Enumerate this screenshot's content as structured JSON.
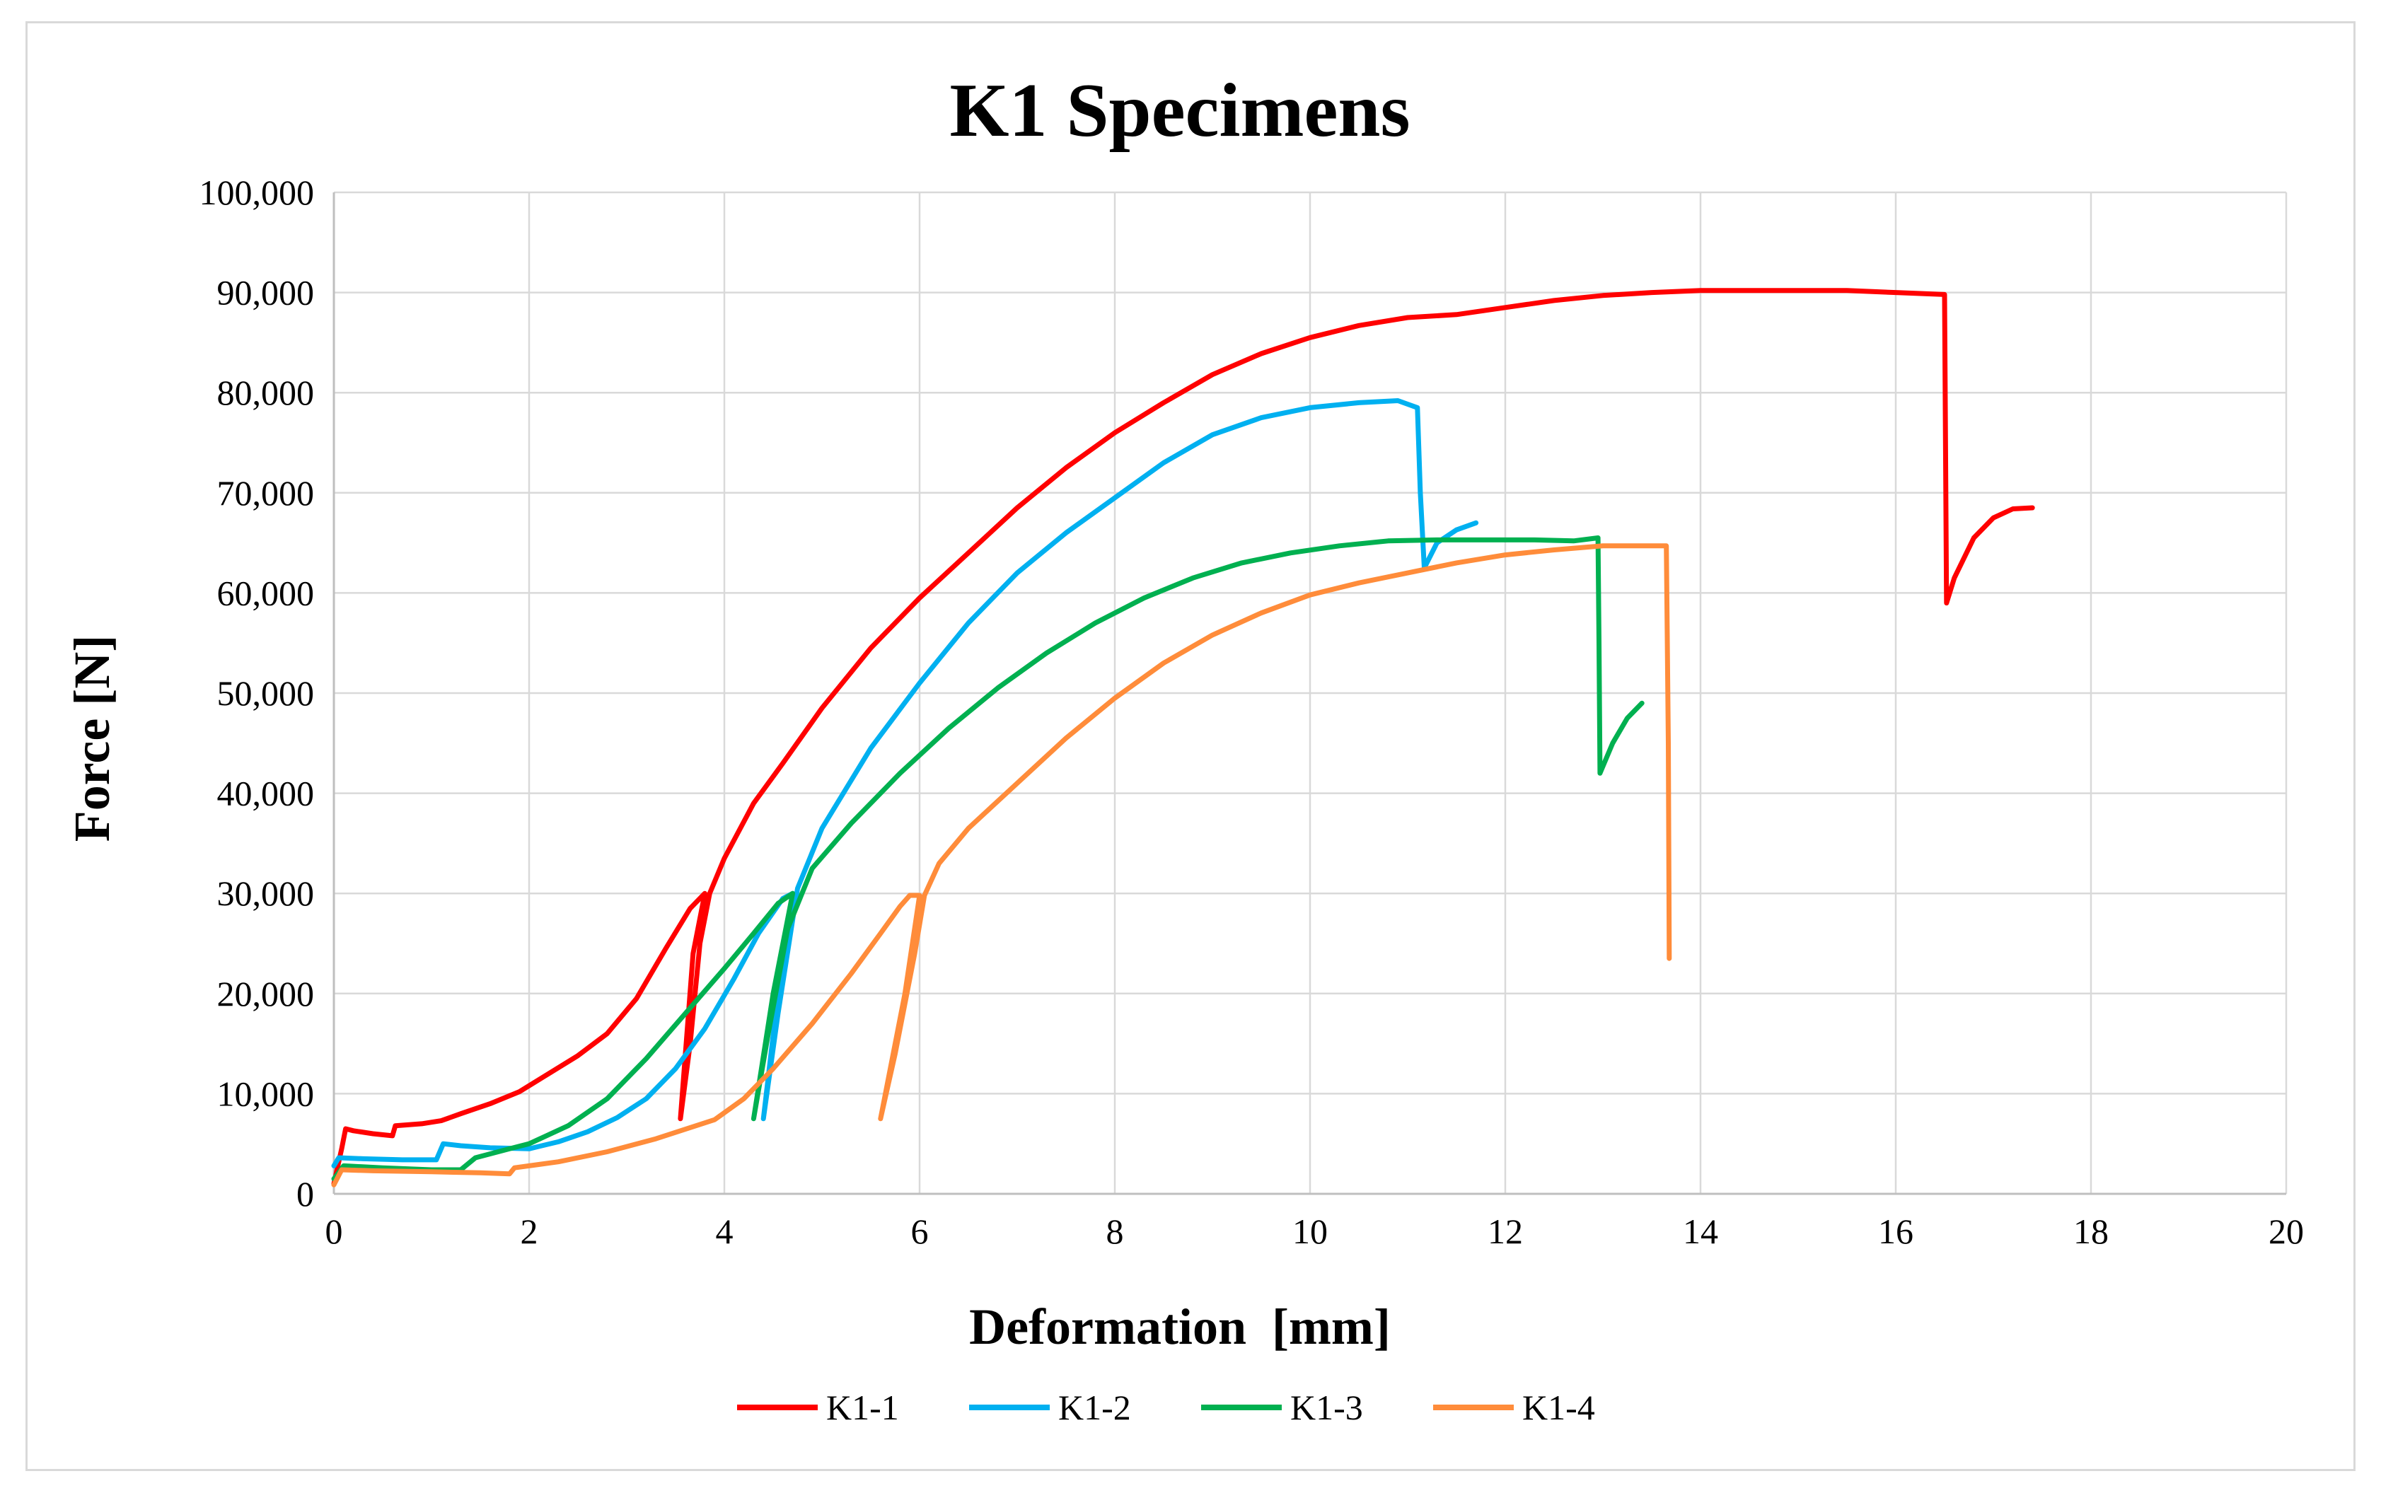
{
  "chart_data": {
    "type": "line",
    "title": "K1 Specimens",
    "xlabel": "Deformation  [mm]",
    "ylabel": "Force [N]",
    "xlim": [
      0,
      20
    ],
    "ylim": [
      0,
      100000
    ],
    "xticks": [
      0,
      2,
      4,
      6,
      8,
      10,
      12,
      14,
      16,
      18,
      20
    ],
    "xtick_labels": [
      "0",
      "2",
      "4",
      "6",
      "8",
      "10",
      "12",
      "14",
      "16",
      "18",
      "20"
    ],
    "yticks": [
      0,
      10000,
      20000,
      30000,
      40000,
      50000,
      60000,
      70000,
      80000,
      90000,
      100000
    ],
    "ytick_labels": [
      "0",
      "10,000",
      "20,000",
      "30,000",
      "40,000",
      "50,000",
      "60,000",
      "70,000",
      "80,000",
      "90,000",
      "100,000"
    ],
    "grid": true,
    "legend_position": "bottom",
    "series": [
      {
        "name": "K1-1",
        "color": "#ff0000",
        "points": [
          [
            0.0,
            1000
          ],
          [
            0.08,
            4500
          ],
          [
            0.12,
            6500
          ],
          [
            0.2,
            6300
          ],
          [
            0.4,
            6000
          ],
          [
            0.6,
            5800
          ],
          [
            0.63,
            6800
          ],
          [
            0.9,
            7000
          ],
          [
            1.1,
            7300
          ],
          [
            1.3,
            8000
          ],
          [
            1.6,
            9000
          ],
          [
            1.9,
            10200
          ],
          [
            2.2,
            12000
          ],
          [
            2.5,
            13800
          ],
          [
            2.8,
            16000
          ],
          [
            3.1,
            19500
          ],
          [
            3.4,
            24500
          ],
          [
            3.65,
            28500
          ],
          [
            3.8,
            30000
          ],
          [
            3.68,
            24000
          ],
          [
            3.55,
            7500
          ],
          [
            3.65,
            15000
          ],
          [
            3.75,
            25000
          ],
          [
            3.85,
            30000
          ],
          [
            4.0,
            33500
          ],
          [
            4.3,
            39000
          ],
          [
            4.6,
            43000
          ],
          [
            5.0,
            48500
          ],
          [
            5.5,
            54500
          ],
          [
            6.0,
            59500
          ],
          [
            6.5,
            64000
          ],
          [
            7.0,
            68500
          ],
          [
            7.5,
            72500
          ],
          [
            8.0,
            76000
          ],
          [
            8.5,
            79000
          ],
          [
            9.0,
            81800
          ],
          [
            9.5,
            83900
          ],
          [
            10.0,
            85500
          ],
          [
            10.5,
            86700
          ],
          [
            11.0,
            87500
          ],
          [
            11.5,
            87800
          ],
          [
            12.0,
            88500
          ],
          [
            12.5,
            89200
          ],
          [
            13.0,
            89700
          ],
          [
            13.5,
            90000
          ],
          [
            14.0,
            90200
          ],
          [
            14.5,
            90200
          ],
          [
            15.0,
            90200
          ],
          [
            15.5,
            90200
          ],
          [
            16.0,
            90000
          ],
          [
            16.5,
            89800
          ],
          [
            16.52,
            59000
          ],
          [
            16.6,
            61500
          ],
          [
            16.8,
            65500
          ],
          [
            17.0,
            67500
          ],
          [
            17.2,
            68400
          ],
          [
            17.4,
            68500
          ]
        ]
      },
      {
        "name": "K1-2",
        "color": "#00b0f0",
        "points": [
          [
            0.0,
            2800
          ],
          [
            0.05,
            3600
          ],
          [
            0.3,
            3500
          ],
          [
            0.7,
            3400
          ],
          [
            1.05,
            3400
          ],
          [
            1.12,
            5000
          ],
          [
            1.3,
            4800
          ],
          [
            1.6,
            4600
          ],
          [
            2.0,
            4500
          ],
          [
            2.3,
            5200
          ],
          [
            2.6,
            6200
          ],
          [
            2.9,
            7600
          ],
          [
            3.2,
            9500
          ],
          [
            3.5,
            12500
          ],
          [
            3.8,
            16500
          ],
          [
            4.1,
            21500
          ],
          [
            4.35,
            26000
          ],
          [
            4.6,
            29500
          ],
          [
            4.7,
            30000
          ],
          [
            4.55,
            20000
          ],
          [
            4.4,
            7500
          ],
          [
            4.55,
            18000
          ],
          [
            4.75,
            30500
          ],
          [
            5.0,
            36500
          ],
          [
            5.5,
            44500
          ],
          [
            6.0,
            51000
          ],
          [
            6.5,
            57000
          ],
          [
            7.0,
            62000
          ],
          [
            7.5,
            66000
          ],
          [
            8.0,
            69500
          ],
          [
            8.5,
            73000
          ],
          [
            9.0,
            75800
          ],
          [
            9.5,
            77500
          ],
          [
            10.0,
            78500
          ],
          [
            10.5,
            79000
          ],
          [
            10.9,
            79200
          ],
          [
            11.1,
            78500
          ],
          [
            11.13,
            70000
          ],
          [
            11.17,
            62500
          ],
          [
            11.3,
            65000
          ],
          [
            11.5,
            66300
          ],
          [
            11.7,
            67000
          ]
        ]
      },
      {
        "name": "K1-3",
        "color": "#00b050",
        "points": [
          [
            0.0,
            1500
          ],
          [
            0.1,
            2800
          ],
          [
            0.5,
            2600
          ],
          [
            1.0,
            2400
          ],
          [
            1.3,
            2400
          ],
          [
            1.45,
            3600
          ],
          [
            1.8,
            4500
          ],
          [
            2.0,
            5000
          ],
          [
            2.4,
            6800
          ],
          [
            2.8,
            9500
          ],
          [
            3.2,
            13500
          ],
          [
            3.6,
            18000
          ],
          [
            4.0,
            22500
          ],
          [
            4.3,
            26000
          ],
          [
            4.55,
            29000
          ],
          [
            4.7,
            30000
          ],
          [
            4.5,
            20000
          ],
          [
            4.3,
            7500
          ],
          [
            4.45,
            16000
          ],
          [
            4.65,
            26500
          ],
          [
            4.9,
            32500
          ],
          [
            5.3,
            37000
          ],
          [
            5.8,
            42000
          ],
          [
            6.3,
            46500
          ],
          [
            6.8,
            50500
          ],
          [
            7.3,
            54000
          ],
          [
            7.8,
            57000
          ],
          [
            8.3,
            59500
          ],
          [
            8.8,
            61500
          ],
          [
            9.3,
            63000
          ],
          [
            9.8,
            64000
          ],
          [
            10.3,
            64700
          ],
          [
            10.8,
            65200
          ],
          [
            11.3,
            65300
          ],
          [
            11.8,
            65300
          ],
          [
            12.3,
            65300
          ],
          [
            12.7,
            65200
          ],
          [
            12.95,
            65500
          ],
          [
            12.96,
            55000
          ],
          [
            12.97,
            42000
          ],
          [
            13.1,
            45000
          ],
          [
            13.25,
            47500
          ],
          [
            13.4,
            49000
          ]
        ]
      },
      {
        "name": "K1-4",
        "color": "#ff8c3a",
        "points": [
          [
            0.0,
            900
          ],
          [
            0.08,
            2400
          ],
          [
            0.4,
            2300
          ],
          [
            1.0,
            2200
          ],
          [
            1.5,
            2100
          ],
          [
            1.8,
            2000
          ],
          [
            1.85,
            2600
          ],
          [
            2.3,
            3200
          ],
          [
            2.8,
            4200
          ],
          [
            3.3,
            5500
          ],
          [
            3.9,
            7400
          ],
          [
            4.2,
            9500
          ],
          [
            4.5,
            12500
          ],
          [
            4.9,
            17000
          ],
          [
            5.3,
            22000
          ],
          [
            5.6,
            26000
          ],
          [
            5.8,
            28700
          ],
          [
            5.9,
            29800
          ],
          [
            6.0,
            29800
          ],
          [
            5.85,
            20000
          ],
          [
            5.6,
            7500
          ],
          [
            5.75,
            14000
          ],
          [
            5.95,
            24000
          ],
          [
            6.05,
            29800
          ],
          [
            6.2,
            33000
          ],
          [
            6.5,
            36500
          ],
          [
            7.0,
            41000
          ],
          [
            7.5,
            45500
          ],
          [
            8.0,
            49500
          ],
          [
            8.5,
            53000
          ],
          [
            9.0,
            55800
          ],
          [
            9.5,
            58000
          ],
          [
            10.0,
            59800
          ],
          [
            10.5,
            61000
          ],
          [
            11.0,
            62000
          ],
          [
            11.5,
            63000
          ],
          [
            12.0,
            63800
          ],
          [
            12.5,
            64300
          ],
          [
            13.0,
            64700
          ],
          [
            13.3,
            64700
          ],
          [
            13.65,
            64700
          ],
          [
            13.67,
            45000
          ],
          [
            13.68,
            23500
          ]
        ]
      }
    ]
  }
}
